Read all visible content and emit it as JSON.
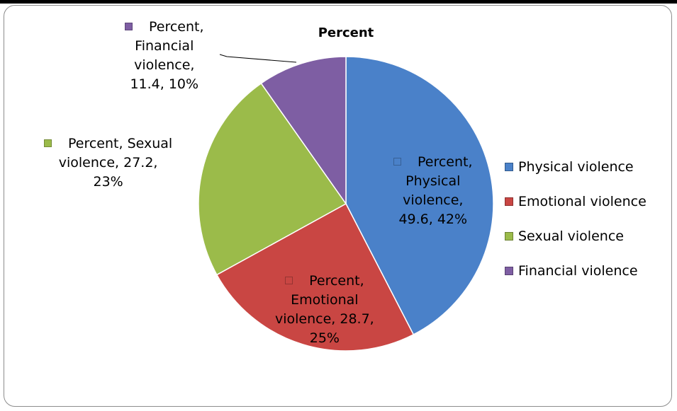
{
  "chart_data": {
    "type": "pie",
    "title": "Percent",
    "series_name": "Percent",
    "categories": [
      "Physical violence",
      "Emotional violence",
      "Sexual violence",
      "Financial violence"
    ],
    "values": [
      49.6,
      28.7,
      27.2,
      11.4
    ],
    "percent_labels": [
      "42%",
      "25%",
      "23%",
      "10%"
    ],
    "colors": [
      "#4a81c9",
      "#c94643",
      "#9bbb4a",
      "#7e5ea3"
    ],
    "legend_position": "right",
    "start_angle_deg": 0,
    "direction": "clockwise",
    "data_labels": [
      {
        "lines": [
          "Percent,",
          "Physical",
          "violence,",
          "49.6, 42%"
        ]
      },
      {
        "lines": [
          "Percent,",
          "Emotional",
          "violence, 28.7,",
          "25%"
        ]
      },
      {
        "lines": [
          "Percent, Sexual",
          "violence, 27.2,",
          "23%"
        ]
      },
      {
        "lines": [
          "Percent,",
          "Financial",
          "violence,",
          "11.4, 10%"
        ]
      }
    ]
  }
}
